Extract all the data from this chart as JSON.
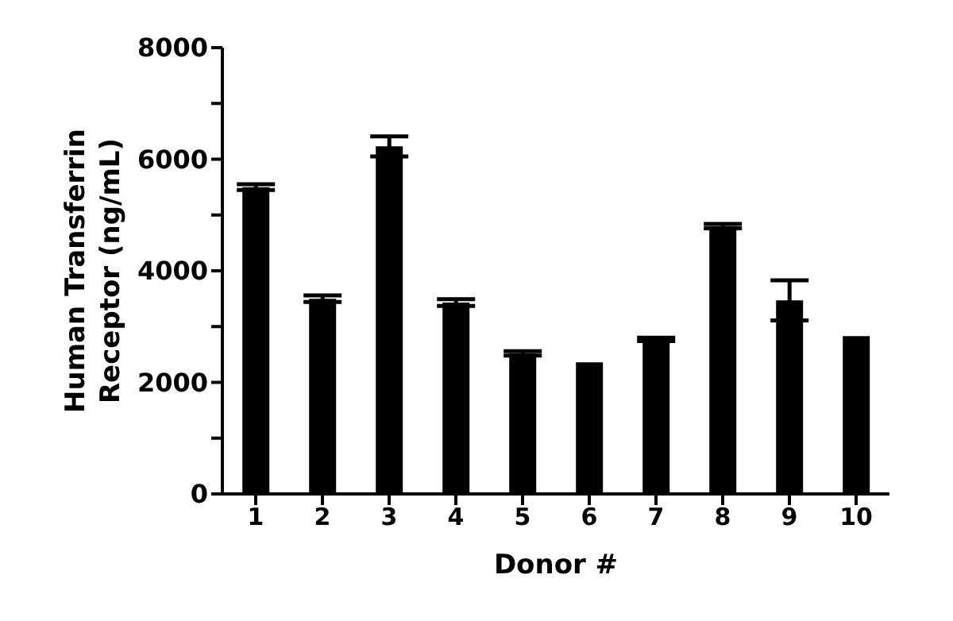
{
  "chart_data": {
    "type": "bar",
    "xlabel": "Donor #",
    "ylabel": "Human Transferrin Receptor (ng/mL)",
    "categories": [
      "1",
      "2",
      "3",
      "4",
      "5",
      "6",
      "7",
      "8",
      "9",
      "10"
    ],
    "values": [
      5500,
      3500,
      6230,
      3430,
      2520,
      2360,
      2770,
      4800,
      3470,
      2830
    ],
    "errors": [
      50,
      60,
      180,
      60,
      40,
      null,
      30,
      40,
      360,
      null
    ],
    "color": "#000000",
    "ylim": [
      0,
      8000
    ],
    "yticks": [
      0,
      {
        "value": 1000,
        "label": null
      },
      2000,
      {
        "value": 3000,
        "label": null
      },
      4000,
      {
        "value": 5000,
        "label": null
      },
      6000,
      {
        "value": 7000,
        "label": null
      },
      8000
    ],
    "grid": false
  }
}
